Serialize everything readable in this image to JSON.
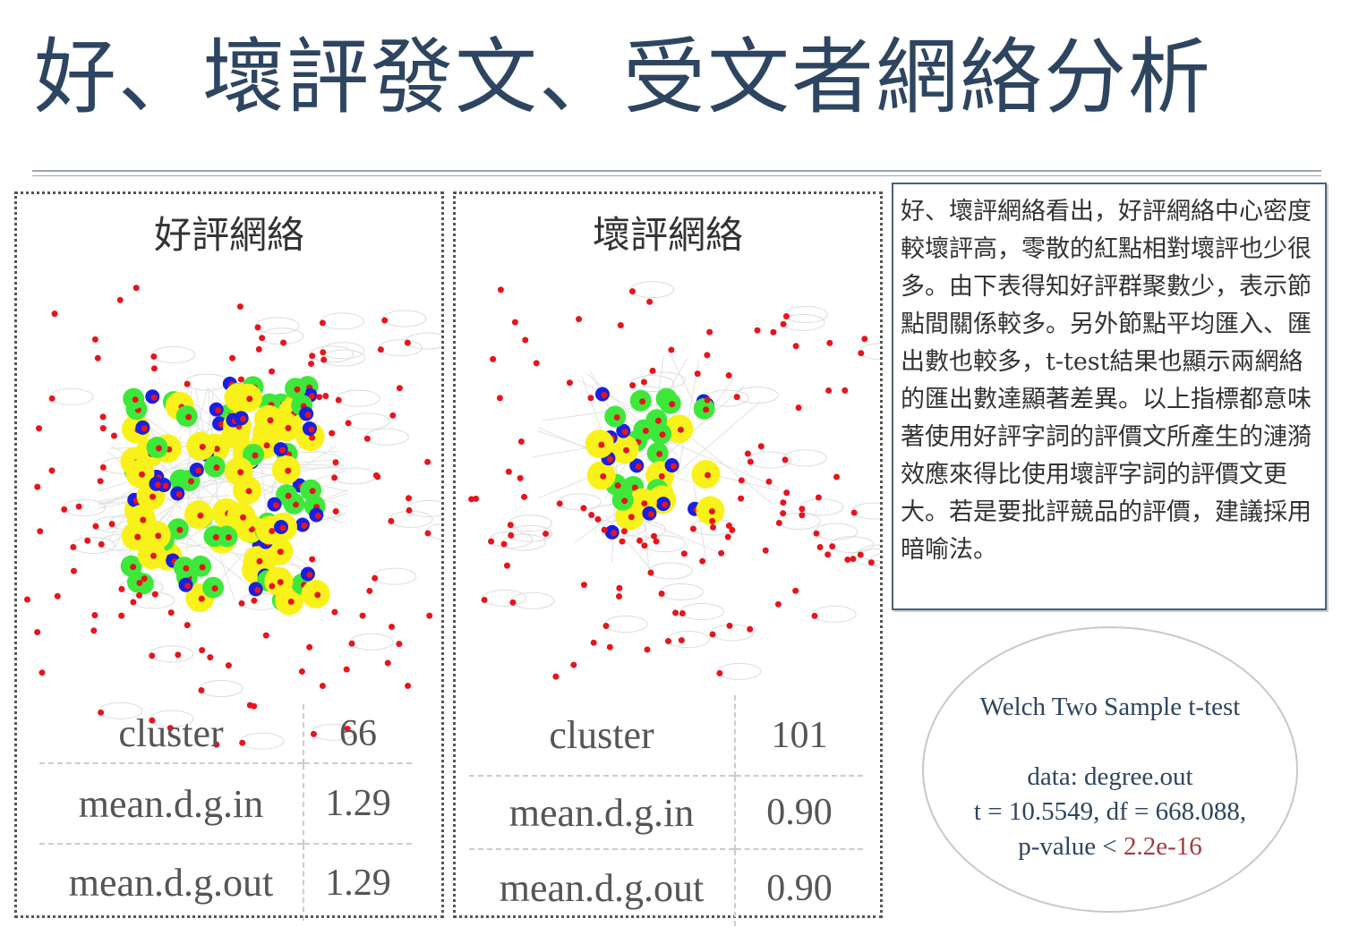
{
  "title": "好、壞評發文、受文者網絡分析",
  "good_panel": {
    "title": "好評網絡",
    "stats": [
      {
        "label": "cluster",
        "value": "66"
      },
      {
        "label": "mean.d.g.in",
        "value": "1.29"
      },
      {
        "label": "mean.d.g.out",
        "value": "1.29"
      }
    ]
  },
  "bad_panel": {
    "title": "壞評網絡",
    "stats": [
      {
        "label": "cluster",
        "value": "101"
      },
      {
        "label": "mean.d.g.in",
        "value": "0.90"
      },
      {
        "label": "mean.d.g.out",
        "value": "0.90"
      }
    ]
  },
  "description": "好、壞評網絡看出，好評網絡中心密度較壞評高，零散的紅點相對壞評也少很多。由下表得知好評群聚數少，表示節點間關係較多。另外節點平均匯入、匯出數也較多，t-test結果也顯示兩網絡的匯出數達顯著差異。以上指標都意味著使用好評字詞的評價文所產生的漣漪效應來得比使用壞評字詞的評價文更大。若是要批評競品的評價，建議採用暗喻法。",
  "ttest": {
    "heading": "Welch Two Sample t-test",
    "data_line": "data:  degree.out",
    "stat_line": "t = 10.5549, df = 668.088,",
    "p_prefix": "p-value < ",
    "p_value": "2.2e-16"
  },
  "colors": {
    "title": "#2d4560",
    "node_red": "#e8141c",
    "node_blue": "#1a1fe0",
    "node_green": "#3ee83a",
    "node_yellow": "#f8f21a",
    "p_value": "#a23b3b"
  }
}
